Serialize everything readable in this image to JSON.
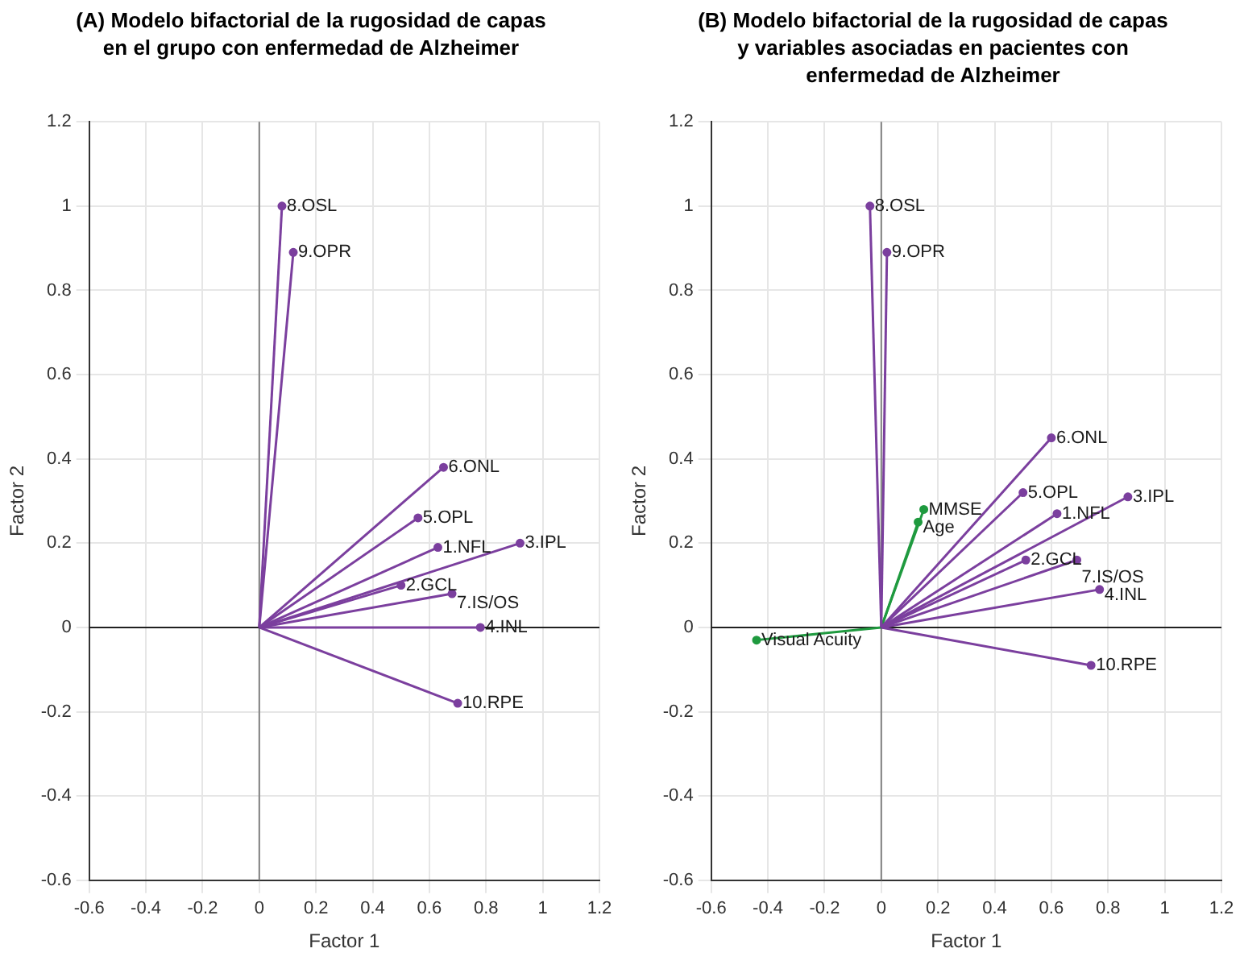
{
  "chart_data": [
    {
      "type": "line",
      "title": "(A) Modelo bifactorial de la rugosidad de capas en el grupo con enfermedad de Alzheimer",
      "xlabel": "Factor 1",
      "ylabel": "Factor 2",
      "xlim": [
        -0.6,
        1.2
      ],
      "ylim": [
        -0.6,
        1.2
      ],
      "xticks": [
        -0.6,
        -0.4,
        -0.2,
        0,
        0.2,
        0.4,
        0.6,
        0.8,
        1,
        1.2
      ],
      "yticks": [
        -0.6,
        -0.4,
        -0.2,
        0,
        0.2,
        0.4,
        0.6,
        0.8,
        1,
        1.2
      ],
      "grid": true,
      "legend": false,
      "marker": "circle",
      "ref_lines": [
        {
          "axis": "x",
          "value": 0,
          "color": "#808080"
        },
        {
          "axis": "y",
          "value": 0,
          "color": "#202020"
        }
      ],
      "series": [
        {
          "name": "1.NFL",
          "color": "#7b3f9e",
          "x": [
            0,
            0.63
          ],
          "values": [
            0,
            0.19
          ]
        },
        {
          "name": "2.GCL",
          "color": "#7b3f9e",
          "x": [
            0,
            0.5
          ],
          "values": [
            0,
            0.1
          ]
        },
        {
          "name": "3.IPL",
          "color": "#7b3f9e",
          "x": [
            0,
            0.92
          ],
          "values": [
            0,
            0.2
          ]
        },
        {
          "name": "4.INL",
          "color": "#7b3f9e",
          "x": [
            0,
            0.78
          ],
          "values": [
            0,
            0.0
          ]
        },
        {
          "name": "5.OPL",
          "color": "#7b3f9e",
          "x": [
            0,
            0.56
          ],
          "values": [
            0,
            0.26
          ]
        },
        {
          "name": "6.ONL",
          "color": "#7b3f9e",
          "x": [
            0,
            0.65
          ],
          "values": [
            0,
            0.38
          ]
        },
        {
          "name": "7.IS/OS",
          "color": "#7b3f9e",
          "x": [
            0,
            0.68
          ],
          "values": [
            0,
            0.08
          ]
        },
        {
          "name": "8.OSL",
          "color": "#7b3f9e",
          "x": [
            0,
            0.08
          ],
          "values": [
            0,
            1.0
          ]
        },
        {
          "name": "9.OPR",
          "color": "#7b3f9e",
          "x": [
            0,
            0.12
          ],
          "values": [
            0,
            0.89
          ]
        },
        {
          "name": "10.RPE",
          "color": "#7b3f9e",
          "x": [
            0,
            0.7
          ],
          "values": [
            0,
            -0.18
          ]
        }
      ]
    },
    {
      "type": "line",
      "title": "(B) Modelo bifactorial de la rugosidad de capas y variables asociadas en pacientes con enfermedad de Alzheimer",
      "xlabel": "Factor 1",
      "ylabel": "Factor 2",
      "xlim": [
        -0.6,
        1.2
      ],
      "ylim": [
        -0.6,
        1.2
      ],
      "xticks": [
        -0.6,
        -0.4,
        -0.2,
        0,
        0.2,
        0.4,
        0.6,
        0.8,
        1,
        1.2
      ],
      "yticks": [
        -0.6,
        -0.4,
        -0.2,
        0,
        0.2,
        0.4,
        0.6,
        0.8,
        1,
        1.2
      ],
      "grid": true,
      "legend": false,
      "marker": "circle",
      "ref_lines": [
        {
          "axis": "x",
          "value": 0,
          "color": "#808080"
        },
        {
          "axis": "y",
          "value": 0,
          "color": "#202020"
        }
      ],
      "series": [
        {
          "name": "1.NFL",
          "color": "#7b3f9e",
          "x": [
            0,
            0.62
          ],
          "values": [
            0,
            0.27
          ]
        },
        {
          "name": "2.GCL",
          "color": "#7b3f9e",
          "x": [
            0,
            0.51
          ],
          "values": [
            0,
            0.16
          ]
        },
        {
          "name": "3.IPL",
          "color": "#7b3f9e",
          "x": [
            0,
            0.87
          ],
          "values": [
            0,
            0.31
          ]
        },
        {
          "name": "4.INL",
          "color": "#7b3f9e",
          "x": [
            0,
            0.77
          ],
          "values": [
            0,
            0.09
          ]
        },
        {
          "name": "5.OPL",
          "color": "#7b3f9e",
          "x": [
            0,
            0.5
          ],
          "values": [
            0,
            0.32
          ]
        },
        {
          "name": "6.ONL",
          "color": "#7b3f9e",
          "x": [
            0,
            0.6
          ],
          "values": [
            0,
            0.45
          ]
        },
        {
          "name": "7.IS/OS",
          "color": "#7b3f9e",
          "x": [
            0,
            0.69
          ],
          "values": [
            0,
            0.16
          ]
        },
        {
          "name": "8.OSL",
          "color": "#7b3f9e",
          "x": [
            0,
            -0.04
          ],
          "values": [
            0,
            1.0
          ]
        },
        {
          "name": "9.OPR",
          "color": "#7b3f9e",
          "x": [
            0,
            0.02
          ],
          "values": [
            0,
            0.89
          ]
        },
        {
          "name": "10.RPE",
          "color": "#7b3f9e",
          "x": [
            0,
            0.74
          ],
          "values": [
            0,
            -0.09
          ]
        },
        {
          "name": "MMSE",
          "color": "#1f9a3f",
          "x": [
            0,
            0.15
          ],
          "values": [
            0,
            0.28
          ]
        },
        {
          "name": "Age",
          "color": "#1f9a3f",
          "x": [
            0,
            0.13
          ],
          "values": [
            0,
            0.25
          ]
        },
        {
          "name": "Visual Acuity",
          "color": "#1f9a3f",
          "x": [
            0,
            -0.44
          ],
          "values": [
            0,
            -0.03
          ]
        }
      ]
    }
  ]
}
